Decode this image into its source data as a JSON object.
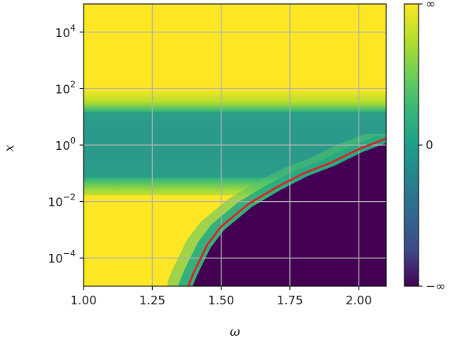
{
  "chart_data": {
    "type": "heatmap",
    "title": "",
    "xlabel": "ω",
    "ylabel": "x",
    "xlim": [
      1.0,
      2.1
    ],
    "ylim": [
      1e-05,
      100000.0
    ],
    "y_scale": "log",
    "grid": true,
    "x_ticks": [
      {
        "value": 1.0,
        "label": "1.00"
      },
      {
        "value": 1.25,
        "label": "1.25"
      },
      {
        "value": 1.5,
        "label": "1.50"
      },
      {
        "value": 1.75,
        "label": "1.75"
      },
      {
        "value": 2.0,
        "label": "2.00"
      }
    ],
    "y_ticks": [
      {
        "value": 0.0001,
        "base": "10",
        "exp": "−4"
      },
      {
        "value": 0.01,
        "base": "10",
        "exp": "−2"
      },
      {
        "value": 1,
        "base": "10",
        "exp": "0"
      },
      {
        "value": 100,
        "base": "10",
        "exp": "2"
      },
      {
        "value": 10000,
        "base": "10",
        "exp": "4"
      }
    ],
    "colorbar": {
      "colormap": "viridis",
      "ticks": [
        {
          "position": "top",
          "label": "∞"
        },
        {
          "position": "middle",
          "label": "0"
        },
        {
          "position": "bottom",
          "label": "−∞"
        }
      ]
    },
    "regions": [
      {
        "name": "upper band",
        "x_range": [
          1.0,
          2.1
        ],
        "log10_x_range": [
          1.5,
          5
        ],
        "level": "+∞",
        "color": "#fde725"
      },
      {
        "name": "middle band",
        "x_range": [
          1.0,
          2.1
        ],
        "log10_x_range": [
          -1.5,
          1.5
        ],
        "level": "0",
        "color": "#2a9b8a"
      },
      {
        "name": "lower-left region",
        "x_range": [
          1.0,
          1.38
        ],
        "log10_x_range": [
          -5,
          -1.5
        ],
        "level": "+∞",
        "color": "#fde725"
      },
      {
        "name": "lower-right region",
        "bounded_by": "boundary_curve",
        "level": "−∞",
        "color": "#440154"
      }
    ],
    "series": [
      {
        "color": "#d62728",
        "x": [
          1.38,
          1.4,
          1.45,
          1.5,
          1.6,
          1.7,
          1.8,
          1.9,
          2.0,
          2.1
        ],
        "y": [
          1e-05,
          3e-05,
          0.0003,
          0.0013,
          0.0083,
          0.0316,
          0.1,
          0.24,
          0.72,
          1.7
        ]
      }
    ]
  }
}
